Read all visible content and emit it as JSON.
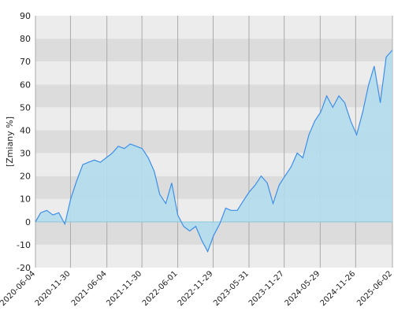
{
  "chart_data": {
    "type": "area",
    "y_label": "[Zmiany %]",
    "x": [
      "2020-06-04",
      "2020-07-01",
      "2020-08-01",
      "2020-09-01",
      "2020-10-01",
      "2020-11-01",
      "2020-12-01",
      "2021-01-01",
      "2021-02-01",
      "2021-03-01",
      "2021-04-01",
      "2021-05-01",
      "2021-06-01",
      "2021-07-01",
      "2021-08-01",
      "2021-09-01",
      "2021-10-01",
      "2021-11-01",
      "2021-12-01",
      "2022-01-01",
      "2022-02-01",
      "2022-03-01",
      "2022-04-01",
      "2022-05-01",
      "2022-06-01",
      "2022-07-01",
      "2022-08-01",
      "2022-09-01",
      "2022-10-01",
      "2022-11-01",
      "2022-12-01",
      "2023-01-01",
      "2023-02-01",
      "2023-03-01",
      "2023-04-01",
      "2023-05-01",
      "2023-06-01",
      "2023-07-01",
      "2023-08-01",
      "2023-09-01",
      "2023-10-01",
      "2023-11-01",
      "2023-12-01",
      "2024-01-01",
      "2024-02-01",
      "2024-03-01",
      "2024-04-01",
      "2024-05-01",
      "2024-06-01",
      "2024-07-01",
      "2024-08-01",
      "2024-09-01",
      "2024-10-01",
      "2024-11-01",
      "2024-12-01",
      "2025-01-01",
      "2025-02-01",
      "2025-03-01",
      "2025-04-01",
      "2025-05-01",
      "2025-06-02"
    ],
    "series": [
      {
        "name": "Zmiany",
        "color": "#3d8fe8",
        "fill": "#b3dcec",
        "values": [
          0,
          4,
          5,
          3,
          4,
          -1,
          10,
          18,
          25,
          26,
          27,
          26,
          28,
          30,
          33,
          32,
          34,
          33,
          32,
          28,
          22,
          12,
          8,
          17,
          3,
          -2,
          -4,
          -2,
          -8,
          -13,
          -6,
          -1,
          6,
          5,
          5,
          9,
          13,
          16,
          20,
          17,
          8,
          16,
          20,
          24,
          30,
          28,
          38,
          44,
          48,
          55,
          50,
          55,
          52,
          44,
          38,
          48,
          60,
          68,
          52,
          72,
          75
        ]
      }
    ],
    "xlim": [
      "2020-06-04",
      "2025-06-02"
    ],
    "xticks": [
      "2020-06-04",
      "2020-11-30",
      "2021-06-04",
      "2021-11-30",
      "2022-06-01",
      "2022-11-29",
      "2023-05-31",
      "2023-11-27",
      "2024-05-29",
      "2024-11-26",
      "2025-06-02"
    ],
    "ylim": [
      -20,
      90
    ],
    "yticks": [
      -20,
      -10,
      0,
      10,
      20,
      30,
      40,
      50,
      60,
      70,
      80,
      90
    ],
    "grid": true
  }
}
